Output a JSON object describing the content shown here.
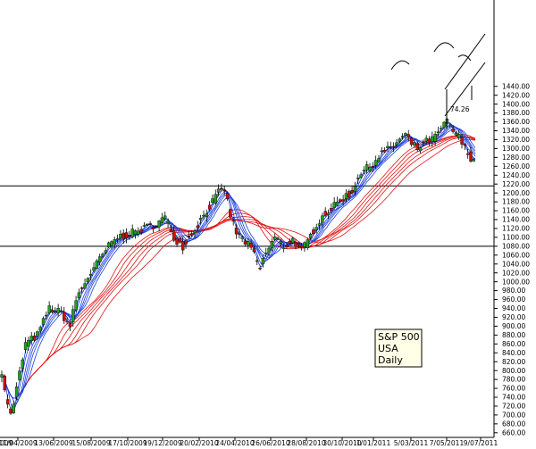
{
  "chart_data": {
    "type": "candlestick",
    "x_tick_labels": [
      "11/04/2009",
      "13/06/2009",
      "15/08/2009",
      "17/10/2009",
      "19/12/2009",
      "20/02/2010",
      "24/04/2010",
      "26/06/2010",
      "28/08/2010",
      "30/10/2010",
      "1/01/2011",
      "5/03/2011",
      "7/05/2011",
      "9/07/2011"
    ],
    "partial_left_label": "009",
    "y_ticks": [
      660,
      680,
      700,
      720,
      740,
      760,
      780,
      800,
      820,
      840,
      860,
      880,
      900,
      920,
      940,
      960,
      980,
      1000,
      1020,
      1040,
      1060,
      1080,
      1100,
      1120,
      1140,
      1160,
      1180,
      1200,
      1220,
      1240,
      1260,
      1280,
      1300,
      1320,
      1340,
      1360,
      1380,
      1400,
      1420,
      1440
    ],
    "y_tick_format": "0.00",
    "ylim": [
      650,
      1450
    ],
    "horizontal_lines": [
      1216,
      1080
    ],
    "annotation": "74.26",
    "info_box": [
      "S&P 500",
      "USA",
      "Daily"
    ],
    "grid": false,
    "series_colors": {
      "up": "#22a022",
      "down": "#cc1111",
      "short_averages": "#1a3fe0",
      "long_averages": "#e01414"
    },
    "price_anchors": [
      [
        0,
        800
      ],
      [
        4,
        720
      ],
      [
        7,
        700
      ],
      [
        10,
        760
      ],
      [
        16,
        860
      ],
      [
        24,
        880
      ],
      [
        32,
        940
      ],
      [
        40,
        930
      ],
      [
        46,
        900
      ],
      [
        50,
        960
      ],
      [
        58,
        1010
      ],
      [
        64,
        1040
      ],
      [
        72,
        1080
      ],
      [
        78,
        1100
      ],
      [
        88,
        1110
      ],
      [
        96,
        1120
      ],
      [
        104,
        1130
      ],
      [
        110,
        1145
      ],
      [
        116,
        1100
      ],
      [
        122,
        1080
      ],
      [
        128,
        1110
      ],
      [
        134,
        1140
      ],
      [
        140,
        1170
      ],
      [
        146,
        1200
      ],
      [
        150,
        1210
      ],
      [
        154,
        1150
      ],
      [
        158,
        1110
      ],
      [
        164,
        1090
      ],
      [
        168,
        1075
      ],
      [
        174,
        1030
      ],
      [
        178,
        1065
      ],
      [
        184,
        1100
      ],
      [
        190,
        1080
      ],
      [
        196,
        1095
      ],
      [
        202,
        1070
      ],
      [
        206,
        1090
      ],
      [
        212,
        1130
      ],
      [
        218,
        1155
      ],
      [
        224,
        1170
      ],
      [
        230,
        1190
      ],
      [
        236,
        1200
      ],
      [
        240,
        1240
      ],
      [
        248,
        1260
      ],
      [
        256,
        1290
      ],
      [
        262,
        1300
      ],
      [
        268,
        1320
      ],
      [
        272,
        1330
      ],
      [
        276,
        1310
      ],
      [
        280,
        1300
      ],
      [
        286,
        1315
      ],
      [
        292,
        1325
      ],
      [
        296,
        1345
      ],
      [
        300,
        1360
      ],
      [
        304,
        1340
      ],
      [
        308,
        1325
      ],
      [
        312,
        1300
      ],
      [
        316,
        1280
      ],
      [
        320,
        1275
      ]
    ]
  }
}
